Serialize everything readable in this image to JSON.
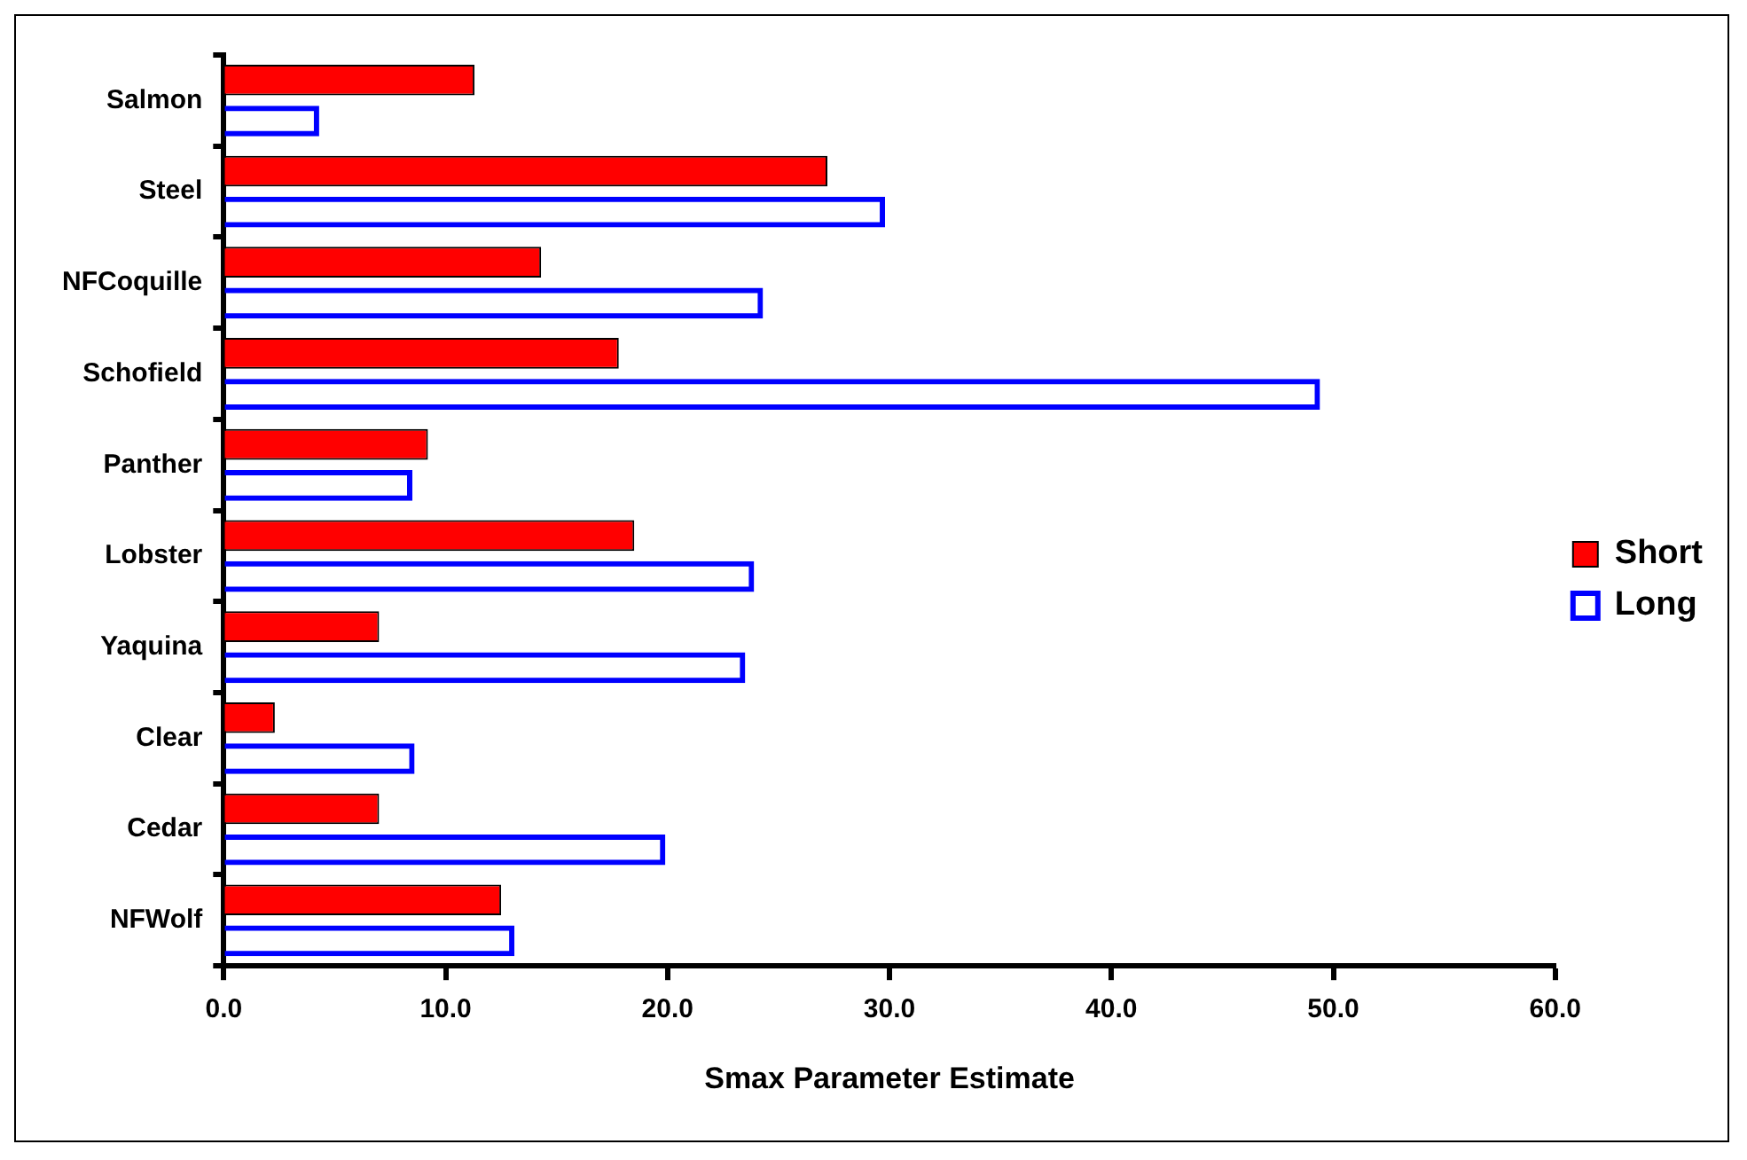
{
  "chart_data": {
    "type": "bar",
    "orientation": "horizontal",
    "xlabel": "Smax Parameter Estimate",
    "categories": [
      "Salmon",
      "Steel",
      "NFCoquille",
      "Schofield",
      "Panther",
      "Lobster",
      "Yaquina",
      "Clear",
      "Cedar",
      "NFWolf"
    ],
    "series": [
      {
        "name": "Short",
        "color": "#ff0000",
        "values": [
          11.3,
          27.2,
          14.3,
          17.8,
          9.2,
          18.5,
          7.0,
          2.3,
          7.0,
          12.5
        ]
      },
      {
        "name": "Long",
        "color": "#0000ff",
        "values": [
          4.3,
          29.8,
          24.3,
          49.4,
          8.5,
          23.9,
          23.5,
          8.6,
          19.9,
          13.1
        ]
      }
    ],
    "xlim": [
      0,
      60
    ],
    "xticks": [
      {
        "value": 0,
        "label": "0.0"
      },
      {
        "value": 10,
        "label": "10.0"
      },
      {
        "value": 20,
        "label": "20.0"
      },
      {
        "value": 30,
        "label": "30.0"
      },
      {
        "value": 40,
        "label": "40.0"
      },
      {
        "value": 50,
        "label": "50.0"
      },
      {
        "value": 60,
        "label": "60.0"
      }
    ],
    "grid": false,
    "legend": "right"
  }
}
